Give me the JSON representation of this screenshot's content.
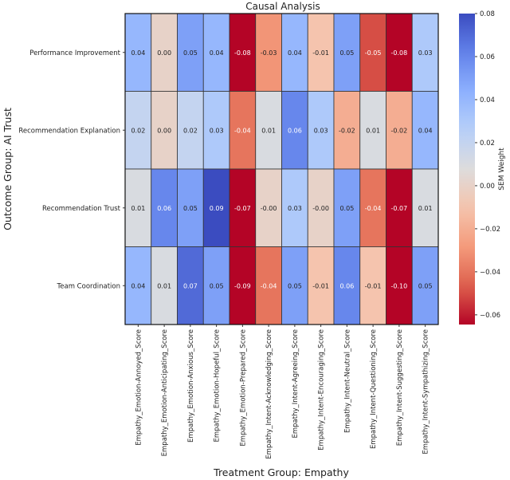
{
  "chart_data": {
    "type": "heatmap",
    "title": "Causal Analysis",
    "xlabel": "Treatment Group: Empathy",
    "ylabel": "Outcome Group: AI Trust",
    "colorbar_label": "SEM Weight",
    "colormap": "coolwarm",
    "color_range": [
      -0.0645,
      0.08
    ],
    "colorbar_ticks": [
      0.08,
      0.06,
      0.04,
      0.02,
      0.0,
      -0.02,
      -0.04,
      -0.06
    ],
    "colorbar_tick_labels": [
      "0.08",
      "0.06",
      "0.04",
      "0.02",
      "0.00",
      "−0.02",
      "−0.04",
      "−0.06"
    ],
    "columns": [
      "Empathy_Emotion-Annoyed_Score",
      "Empathy_Emotion-Anticipating_Score",
      "Empathy_Emotion-Anxious_Score",
      "Empathy_Emotion-Hopeful_Score",
      "Empathy_Emotion-Prepared_Score",
      "Empathy_Intent-Acknowledging_Score",
      "Empathy_Intent-Agreeing_Score",
      "Empathy_Intent-Encouraging_Score",
      "Empathy_Intent-Neutral_Score",
      "Empathy_Intent-Questioning_Score",
      "Empathy_Intent-Suggesting_Score",
      "Empathy_Intent-Sympathizing_Score"
    ],
    "rows": [
      "Performance Improvement",
      "Recommendation Explanation",
      "Recommendation Trust",
      "Team Coordination"
    ],
    "values": [
      [
        0.04,
        0.0,
        0.05,
        0.04,
        -0.08,
        -0.03,
        0.04,
        -0.01,
        0.05,
        -0.05,
        -0.08,
        0.03
      ],
      [
        0.02,
        0.0,
        0.02,
        0.03,
        -0.04,
        0.01,
        0.06,
        0.03,
        -0.02,
        0.01,
        -0.02,
        0.04
      ],
      [
        0.01,
        0.06,
        0.05,
        0.09,
        -0.07,
        -0.0,
        0.03,
        -0.0,
        0.05,
        -0.04,
        -0.07,
        0.01
      ],
      [
        0.04,
        0.01,
        0.07,
        0.05,
        -0.09,
        -0.04,
        0.05,
        -0.01,
        0.06,
        -0.01,
        -0.1,
        0.05
      ]
    ],
    "labels": [
      [
        "0.04",
        "0.00",
        "0.05",
        "0.04",
        "-0.08",
        "-0.03",
        "0.04",
        "-0.01",
        "0.05",
        "-0.05",
        "-0.08",
        "0.03"
      ],
      [
        "0.02",
        "0.00",
        "0.02",
        "0.03",
        "-0.04",
        "0.01",
        "0.06",
        "0.03",
        "-0.02",
        "0.01",
        "-0.02",
        "0.04"
      ],
      [
        "0.01",
        "0.06",
        "0.05",
        "0.09",
        "-0.07",
        "-0.00",
        "0.03",
        "-0.00",
        "0.05",
        "-0.04",
        "-0.07",
        "0.01"
      ],
      [
        "0.04",
        "0.01",
        "0.07",
        "0.05",
        "-0.09",
        "-0.04",
        "0.05",
        "-0.01",
        "0.06",
        "-0.01",
        "-0.10",
        "0.05"
      ]
    ]
  }
}
